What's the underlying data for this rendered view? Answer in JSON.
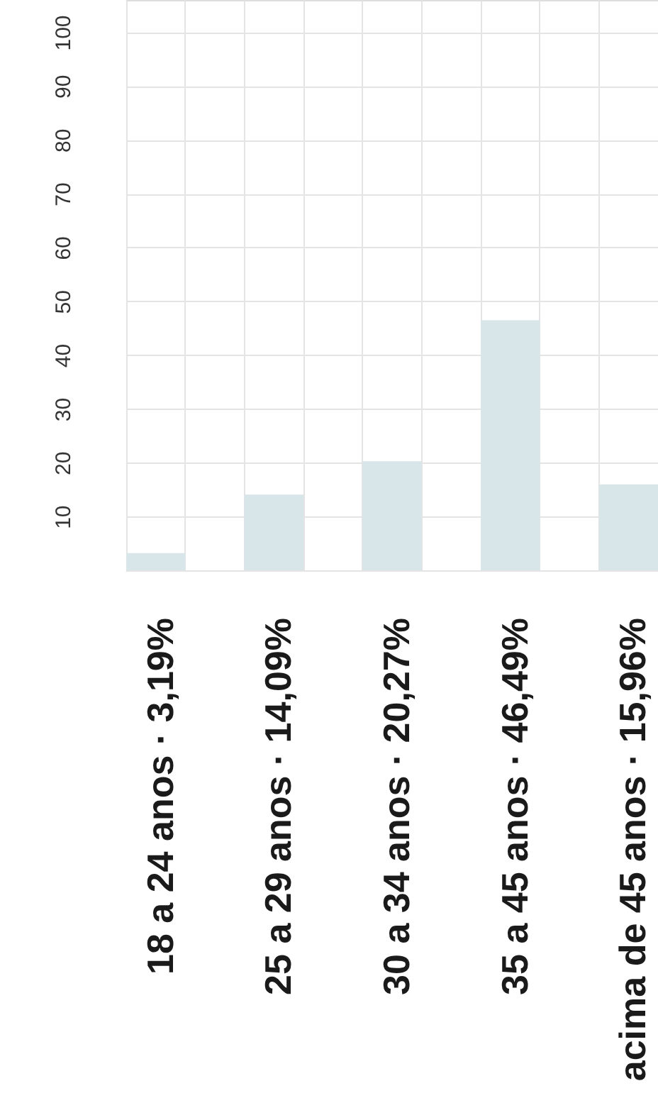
{
  "chart_data": {
    "type": "bar",
    "categories": [
      "18 a 24 anos · 3,19%",
      "25 a 29 anos · 14,09%",
      "30 a 34 anos · 20,27%",
      "35 a 45 anos · 46,49%",
      "acima de 45 anos · 15,96%"
    ],
    "values": [
      3.19,
      14.09,
      20.27,
      46.49,
      15.96
    ],
    "color": "#d8e5e9",
    "ylim": [
      0,
      106
    ],
    "yticks": [
      {
        "value": 0,
        "label": null
      },
      10,
      20,
      30,
      40,
      50,
      60,
      70,
      80,
      90,
      100
    ],
    "grid": true
  }
}
